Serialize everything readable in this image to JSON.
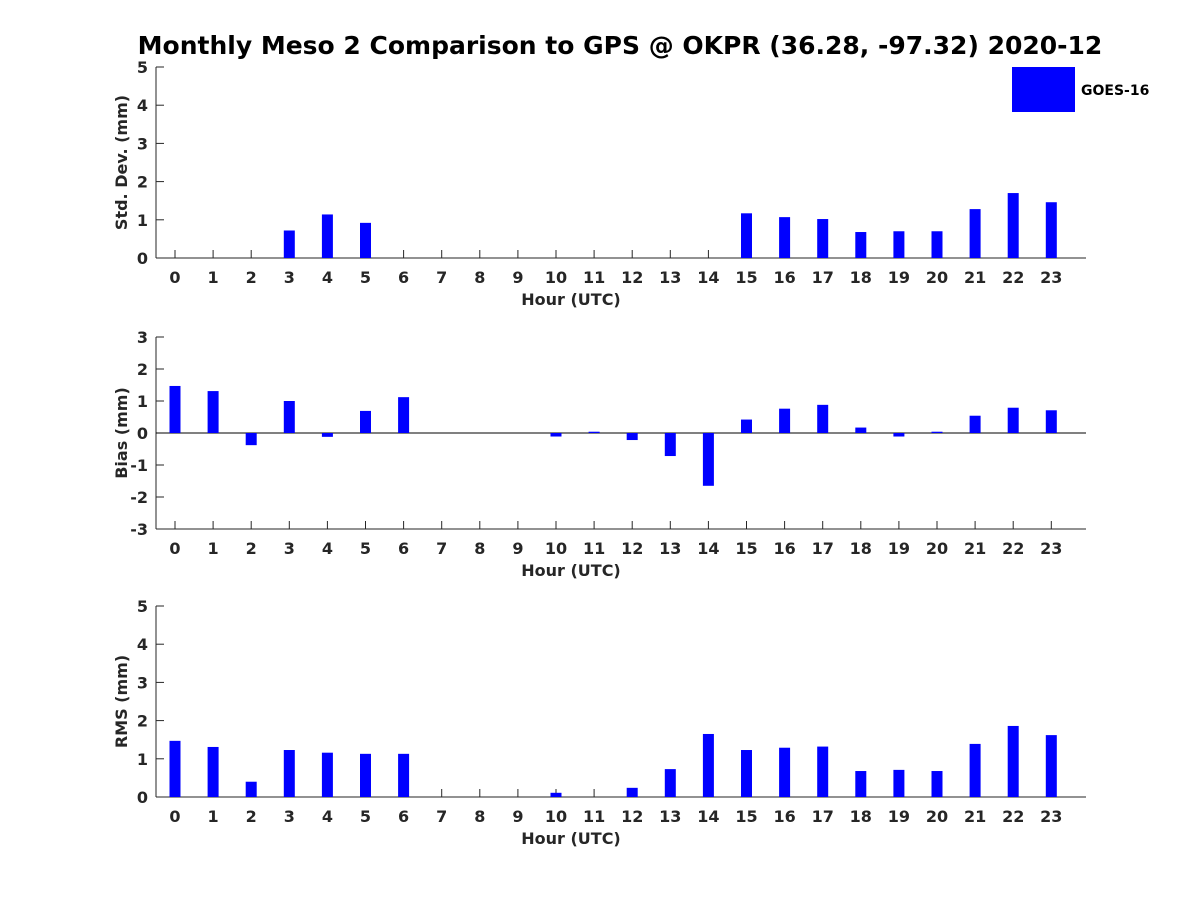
{
  "chart_data": {
    "type": "bar",
    "title": "Monthly Meso 2 Comparison to GPS @ OKPR (36.28, -97.32) 2020-12",
    "legend": {
      "label": "GOES-16",
      "color": "#0000ff",
      "placement": "top-right"
    },
    "colors": {
      "bar": "#0000ff",
      "axis": "#262626",
      "zero_line": "#000000"
    },
    "panels": [
      {
        "name": "std-dev",
        "xlabel": "Hour (UTC)",
        "ylabel": "Std. Dev. (mm)",
        "ylim": [
          0,
          5
        ],
        "yticks": [
          0,
          1,
          2,
          3,
          4,
          5
        ],
        "categories": [
          "0",
          "1",
          "2",
          "3",
          "4",
          "5",
          "6",
          "7",
          "8",
          "9",
          "10",
          "11",
          "12",
          "13",
          "14",
          "15",
          "16",
          "17",
          "18",
          "19",
          "20",
          "21",
          "22",
          "23"
        ],
        "values": [
          0,
          0,
          0,
          0.72,
          1.14,
          0.92,
          0,
          0,
          0,
          0,
          0,
          0,
          0,
          0,
          0,
          1.17,
          1.07,
          1.02,
          0.68,
          0.7,
          0.7,
          1.28,
          1.7,
          1.46
        ]
      },
      {
        "name": "bias",
        "xlabel": "Hour (UTC)",
        "ylabel": "Bias (mm)",
        "ylim": [
          -3,
          3
        ],
        "yticks": [
          -3,
          -2,
          -1,
          0,
          1,
          2,
          3
        ],
        "categories": [
          "0",
          "1",
          "2",
          "3",
          "4",
          "5",
          "6",
          "7",
          "8",
          "9",
          "10",
          "11",
          "12",
          "13",
          "14",
          "15",
          "16",
          "17",
          "18",
          "19",
          "20",
          "21",
          "22",
          "23"
        ],
        "values": [
          1.47,
          1.31,
          -0.38,
          1.0,
          -0.12,
          0.69,
          1.12,
          0,
          0,
          0,
          -0.11,
          0.04,
          -0.22,
          -0.72,
          -1.65,
          0.42,
          0.76,
          0.88,
          0.17,
          -0.11,
          0.04,
          0.54,
          0.79,
          0.71
        ]
      },
      {
        "name": "rms",
        "xlabel": "Hour (UTC)",
        "ylabel": "RMS (mm)",
        "ylim": [
          0,
          5
        ],
        "yticks": [
          0,
          1,
          2,
          3,
          4,
          5
        ],
        "categories": [
          "0",
          "1",
          "2",
          "3",
          "4",
          "5",
          "6",
          "7",
          "8",
          "9",
          "10",
          "11",
          "12",
          "13",
          "14",
          "15",
          "16",
          "17",
          "18",
          "19",
          "20",
          "21",
          "22",
          "23"
        ],
        "values": [
          1.47,
          1.31,
          0.4,
          1.23,
          1.16,
          1.13,
          1.13,
          0,
          0,
          0,
          0.11,
          0,
          0.24,
          0.73,
          1.65,
          1.23,
          1.29,
          1.32,
          0.68,
          0.71,
          0.68,
          1.39,
          1.86,
          1.62
        ]
      }
    ]
  }
}
